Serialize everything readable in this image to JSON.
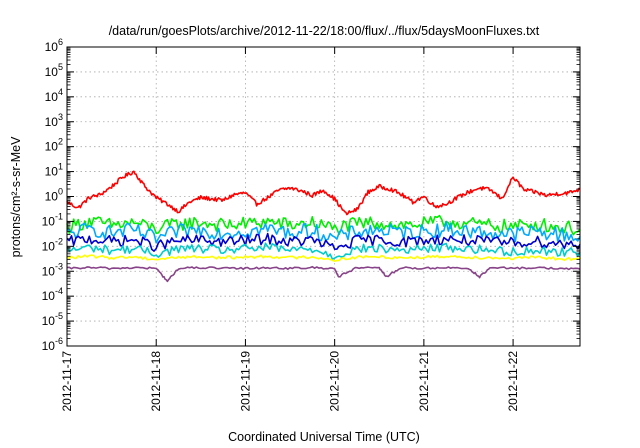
{
  "chart_data": {
    "type": "line",
    "title": "/data/run/goesPlots/archive/2012-11-22/18:00/flux/../flux/5daysMoonFluxes.txt",
    "xlabel": "Coordinated Universal Time (UTC)",
    "ylabel": "protons/cm²-s-sr-MeV",
    "y_scale": "log",
    "ylim": [
      1e-06,
      1000000.0
    ],
    "y_ticks": [
      {
        "base": "10",
        "exp": "-6"
      },
      {
        "base": "10",
        "exp": "-5"
      },
      {
        "base": "10",
        "exp": "-4"
      },
      {
        "base": "10",
        "exp": "-3"
      },
      {
        "base": "10",
        "exp": "-2"
      },
      {
        "base": "10",
        "exp": "-1"
      },
      {
        "base": "10",
        "exp": "0"
      },
      {
        "base": "10",
        "exp": "1"
      },
      {
        "base": "10",
        "exp": "2"
      },
      {
        "base": "10",
        "exp": "3"
      },
      {
        "base": "10",
        "exp": "4"
      },
      {
        "base": "10",
        "exp": "5"
      },
      {
        "base": "10",
        "exp": "6"
      }
    ],
    "x_ticks": [
      "2012-11-17",
      "2012-11-18",
      "2012-11-19",
      "2012-11-20",
      "2012-11-21",
      "2012-11-22"
    ],
    "xlim": [
      "2012-11-17",
      "2012-11-22 18:00"
    ],
    "grid": true,
    "legend": "none",
    "series": [
      {
        "color": "#ff0000",
        "x": [
          "2012-11-17 00:00",
          "2012-11-17 03:00",
          "2012-11-17 06:00",
          "2012-11-17 09:00",
          "2012-11-17 12:00",
          "2012-11-17 15:00",
          "2012-11-17 18:00",
          "2012-11-17 21:00",
          "2012-11-18 00:00",
          "2012-11-18 03:00",
          "2012-11-18 06:00",
          "2012-11-18 09:00",
          "2012-11-18 12:00",
          "2012-11-18 15:00",
          "2012-11-18 18:00",
          "2012-11-18 21:00",
          "2012-11-19 00:00",
          "2012-11-19 03:00",
          "2012-11-19 06:00",
          "2012-11-19 09:00",
          "2012-11-19 12:00",
          "2012-11-19 15:00",
          "2012-11-19 18:00",
          "2012-11-19 21:00",
          "2012-11-20 00:00",
          "2012-11-20 03:00",
          "2012-11-20 06:00",
          "2012-11-20 09:00",
          "2012-11-20 12:00",
          "2012-11-20 15:00",
          "2012-11-20 18:00",
          "2012-11-20 21:00",
          "2012-11-21 00:00",
          "2012-11-21 03:00",
          "2012-11-21 06:00",
          "2012-11-21 09:00",
          "2012-11-21 12:00",
          "2012-11-21 15:00",
          "2012-11-21 18:00",
          "2012-11-21 21:00",
          "2012-11-22 00:00",
          "2012-11-22 03:00",
          "2012-11-22 06:00",
          "2012-11-22 09:00",
          "2012-11-22 12:00",
          "2012-11-22 15:00",
          "2012-11-22 18:00"
        ],
        "values": [
          0.6,
          0.35,
          0.9,
          1.2,
          2.5,
          6,
          10,
          2.5,
          0.9,
          0.5,
          0.25,
          0.6,
          0.9,
          0.8,
          0.7,
          1.2,
          1.4,
          0.5,
          0.9,
          1.8,
          2.2,
          1.7,
          1.1,
          1.8,
          0.8,
          0.2,
          0.3,
          1.5,
          2.5,
          2.0,
          1.2,
          0.6,
          1.0,
          0.4,
          0.5,
          0.9,
          1.5,
          2.2,
          1.8,
          0.8,
          6,
          1.8,
          1.5,
          1.1,
          1.3,
          1.4,
          2.0
        ]
      },
      {
        "color": "#00ee00",
        "x": [
          "2012-11-17 00:00",
          "2012-11-17 06:00",
          "2012-11-17 12:00",
          "2012-11-17 18:00",
          "2012-11-18 00:00",
          "2012-11-18 06:00",
          "2012-11-18 12:00",
          "2012-11-18 18:00",
          "2012-11-19 00:00",
          "2012-11-19 06:00",
          "2012-11-19 12:00",
          "2012-11-19 18:00",
          "2012-11-20 00:00",
          "2012-11-20 06:00",
          "2012-11-20 12:00",
          "2012-11-20 18:00",
          "2012-11-21 00:00",
          "2012-11-21 06:00",
          "2012-11-21 12:00",
          "2012-11-21 18:00",
          "2012-11-22 00:00",
          "2012-11-22 06:00",
          "2012-11-22 12:00",
          "2012-11-22 18:00"
        ],
        "values": [
          0.06,
          0.1,
          0.07,
          0.09,
          0.05,
          0.08,
          0.09,
          0.07,
          0.08,
          0.1,
          0.07,
          0.09,
          0.05,
          0.08,
          0.09,
          0.07,
          0.08,
          0.1,
          0.08,
          0.07,
          0.06,
          0.08,
          0.06,
          0.05
        ]
      },
      {
        "color": "#00aaff",
        "x": [
          "2012-11-17 00:00",
          "2012-11-17 06:00",
          "2012-11-17 12:00",
          "2012-11-17 18:00",
          "2012-11-18 00:00",
          "2012-11-18 06:00",
          "2012-11-18 12:00",
          "2012-11-18 18:00",
          "2012-11-19 00:00",
          "2012-11-19 06:00",
          "2012-11-19 12:00",
          "2012-11-19 18:00",
          "2012-11-20 00:00",
          "2012-11-20 06:00",
          "2012-11-20 12:00",
          "2012-11-20 18:00",
          "2012-11-21 00:00",
          "2012-11-21 06:00",
          "2012-11-21 12:00",
          "2012-11-21 18:00",
          "2012-11-22 00:00",
          "2012-11-22 06:00",
          "2012-11-22 12:00",
          "2012-11-22 18:00"
        ],
        "values": [
          0.03,
          0.05,
          0.035,
          0.045,
          0.02,
          0.04,
          0.045,
          0.035,
          0.04,
          0.05,
          0.035,
          0.045,
          0.02,
          0.04,
          0.045,
          0.035,
          0.04,
          0.05,
          0.04,
          0.035,
          0.03,
          0.04,
          0.03,
          0.025
        ]
      },
      {
        "color": "#0000cc",
        "x": [
          "2012-11-17 00:00",
          "2012-11-17 06:00",
          "2012-11-17 12:00",
          "2012-11-17 18:00",
          "2012-11-18 00:00",
          "2012-11-18 06:00",
          "2012-11-18 12:00",
          "2012-11-18 18:00",
          "2012-11-19 00:00",
          "2012-11-19 06:00",
          "2012-11-19 12:00",
          "2012-11-19 18:00",
          "2012-11-20 00:00",
          "2012-11-20 06:00",
          "2012-11-20 12:00",
          "2012-11-20 18:00",
          "2012-11-21 00:00",
          "2012-11-21 06:00",
          "2012-11-21 12:00",
          "2012-11-21 18:00",
          "2012-11-22 00:00",
          "2012-11-22 06:00",
          "2012-11-22 12:00",
          "2012-11-22 18:00"
        ],
        "values": [
          0.015,
          0.02,
          0.016,
          0.018,
          0.01,
          0.017,
          0.018,
          0.015,
          0.017,
          0.02,
          0.015,
          0.018,
          0.008,
          0.017,
          0.018,
          0.015,
          0.017,
          0.02,
          0.017,
          0.015,
          0.014,
          0.016,
          0.013,
          0.012
        ]
      },
      {
        "color": "#00cccc",
        "x": [
          "2012-11-17 00:00",
          "2012-11-17 06:00",
          "2012-11-17 12:00",
          "2012-11-17 18:00",
          "2012-11-18 00:00",
          "2012-11-18 06:00",
          "2012-11-18 12:00",
          "2012-11-18 18:00",
          "2012-11-19 00:00",
          "2012-11-19 06:00",
          "2012-11-19 12:00",
          "2012-11-19 18:00",
          "2012-11-20 00:00",
          "2012-11-20 06:00",
          "2012-11-20 12:00",
          "2012-11-20 18:00",
          "2012-11-21 00:00",
          "2012-11-21 06:00",
          "2012-11-21 12:00",
          "2012-11-21 18:00",
          "2012-11-22 00:00",
          "2012-11-22 06:00",
          "2012-11-22 12:00",
          "2012-11-22 18:00"
        ],
        "values": [
          0.007,
          0.009,
          0.007,
          0.008,
          0.005,
          0.008,
          0.008,
          0.007,
          0.008,
          0.009,
          0.007,
          0.008,
          0.004,
          0.008,
          0.008,
          0.007,
          0.008,
          0.009,
          0.008,
          0.007,
          0.006,
          0.007,
          0.006,
          0.006
        ]
      },
      {
        "color": "#ffff00",
        "x": [
          "2012-11-17 00:00",
          "2012-11-17 06:00",
          "2012-11-17 12:00",
          "2012-11-17 18:00",
          "2012-11-18 00:00",
          "2012-11-18 06:00",
          "2012-11-18 12:00",
          "2012-11-18 18:00",
          "2012-11-19 00:00",
          "2012-11-19 06:00",
          "2012-11-19 12:00",
          "2012-11-19 18:00",
          "2012-11-20 00:00",
          "2012-11-20 06:00",
          "2012-11-20 12:00",
          "2012-11-20 18:00",
          "2012-11-21 00:00",
          "2012-11-21 06:00",
          "2012-11-21 12:00",
          "2012-11-21 18:00",
          "2012-11-22 00:00",
          "2012-11-22 06:00",
          "2012-11-22 12:00",
          "2012-11-22 18:00"
        ],
        "values": [
          0.0035,
          0.004,
          0.0035,
          0.0038,
          0.003,
          0.0037,
          0.0038,
          0.0035,
          0.0037,
          0.004,
          0.0035,
          0.0038,
          0.0028,
          0.0037,
          0.0038,
          0.0035,
          0.0037,
          0.004,
          0.0037,
          0.0035,
          0.0033,
          0.0036,
          0.0032,
          0.003
        ]
      },
      {
        "color": "#884488",
        "x": [
          "2012-11-17 00:00",
          "2012-11-17 06:00",
          "2012-11-17 12:00",
          "2012-11-17 18:00",
          "2012-11-18 00:00",
          "2012-11-18 03:00",
          "2012-11-18 06:00",
          "2012-11-18 12:00",
          "2012-11-18 18:00",
          "2012-11-19 00:00",
          "2012-11-19 06:00",
          "2012-11-19 12:00",
          "2012-11-19 18:00",
          "2012-11-20 00:00",
          "2012-11-20 01:00",
          "2012-11-20 06:00",
          "2012-11-20 12:00",
          "2012-11-20 14:00",
          "2012-11-20 18:00",
          "2012-11-21 00:00",
          "2012-11-21 06:00",
          "2012-11-21 12:00",
          "2012-11-21 18:00",
          "2012-11-21 15:00",
          "2012-11-22 00:00",
          "2012-11-22 06:00",
          "2012-11-22 12:00",
          "2012-11-22 18:00"
        ],
        "values": [
          0.0013,
          0.0014,
          0.0013,
          0.0014,
          0.0013,
          0.0004,
          0.0013,
          0.0014,
          0.0013,
          0.0013,
          0.0014,
          0.0013,
          0.0014,
          0.0013,
          0.0006,
          0.0014,
          0.0013,
          0.0006,
          0.0014,
          0.0013,
          0.0014,
          0.0013,
          0.0014,
          0.0006,
          0.0013,
          0.0014,
          0.0013,
          0.0012
        ]
      }
    ]
  }
}
